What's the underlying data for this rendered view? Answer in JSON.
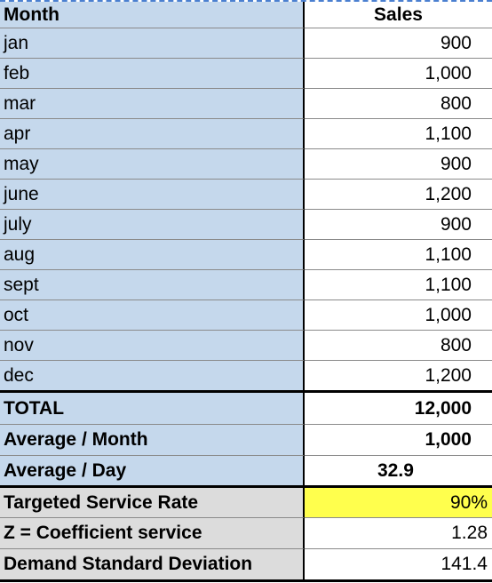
{
  "header": {
    "month_label": "Month",
    "sales_label": "Sales"
  },
  "months": [
    {
      "month": "jan",
      "sales": "900"
    },
    {
      "month": "feb",
      "sales": "1,000"
    },
    {
      "month": "mar",
      "sales": "800"
    },
    {
      "month": "apr",
      "sales": "1,100"
    },
    {
      "month": "may",
      "sales": "900"
    },
    {
      "month": "june",
      "sales": "1,200"
    },
    {
      "month": "july",
      "sales": "900"
    },
    {
      "month": "aug",
      "sales": "1,100"
    },
    {
      "month": "sept",
      "sales": "1,100"
    },
    {
      "month": "oct",
      "sales": "1,000"
    },
    {
      "month": "nov",
      "sales": "800"
    },
    {
      "month": "dec",
      "sales": "1,200"
    }
  ],
  "summary": {
    "total_label": "TOTAL",
    "total_value": "12,000",
    "avg_month_label": "Average /  Month",
    "avg_month_value": "1,000",
    "avg_day_label": "Average / Day",
    "avg_day_value": "32.9"
  },
  "parameters": {
    "service_rate_label": "Targeted Service Rate",
    "service_rate_value": "90%",
    "z_label": "Z = Coefficient service",
    "z_value": "1.28",
    "std_dev_label": "Demand Standard Deviation",
    "std_dev_value": "141.4"
  },
  "colors": {
    "label_fill": "#c5d8ec",
    "param_fill": "#dcdcdc",
    "highlight_fill": "#ffff4d"
  }
}
